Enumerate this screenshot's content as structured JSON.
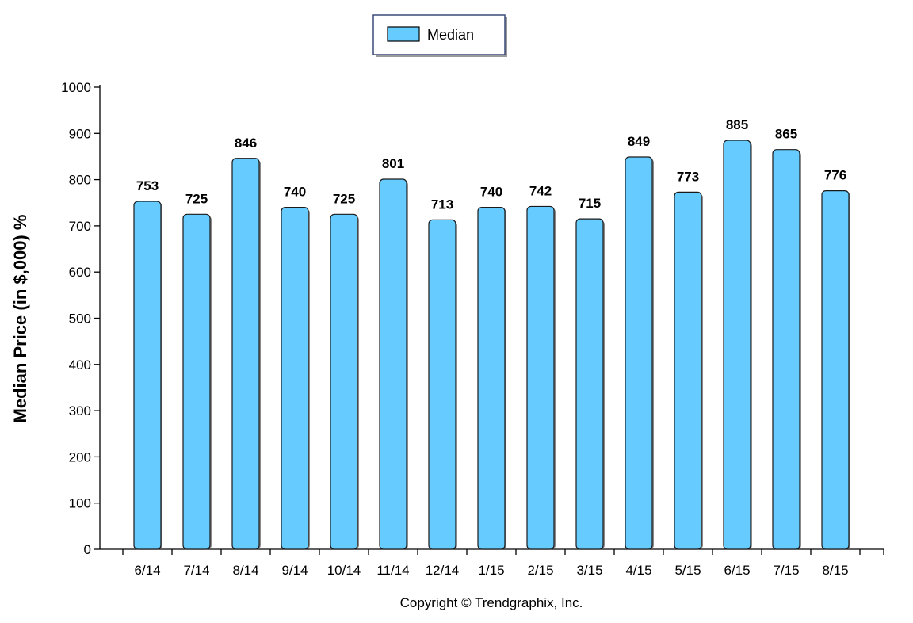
{
  "chart_data": {
    "type": "bar",
    "categories": [
      "6/14",
      "7/14",
      "8/14",
      "9/14",
      "10/14",
      "11/14",
      "12/14",
      "1/15",
      "2/15",
      "3/15",
      "4/15",
      "5/15",
      "6/15",
      "7/15",
      "8/15"
    ],
    "series": [
      {
        "name": "Median",
        "values": [
          753,
          725,
          846,
          740,
          725,
          801,
          713,
          740,
          742,
          715,
          849,
          773,
          885,
          865,
          776
        ],
        "color": "#66CCFF"
      }
    ],
    "ylabel": "Median Price (in $,000) %",
    "xlabel": "",
    "ylim": [
      0,
      1000
    ],
    "yticks": [
      0,
      100,
      200,
      300,
      400,
      500,
      600,
      700,
      800,
      900,
      1000
    ],
    "legend_position": "top-center",
    "grid": false,
    "data_labels": true
  },
  "footer": {
    "copyright": "Copyright © Trendgraphix, Inc."
  }
}
